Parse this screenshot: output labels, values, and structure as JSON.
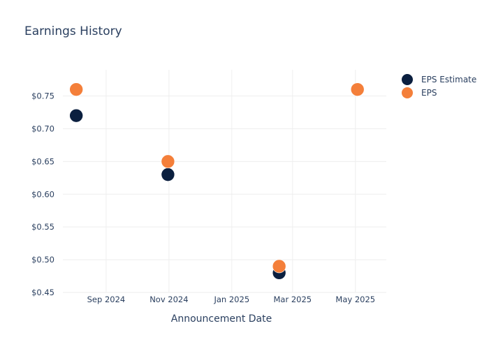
{
  "chart_data": {
    "type": "scatter",
    "title": "Earnings History",
    "xlabel": "Announcement Date",
    "ylabel": "",
    "x_tick_labels": [
      "Sep 2024",
      "Nov 2024",
      "Jan 2025",
      "Mar 2025",
      "May 2025"
    ],
    "y_tick_labels": [
      "$0.45",
      "$0.50",
      "$0.55",
      "$0.60",
      "$0.65",
      "$0.70",
      "$0.75"
    ],
    "x_ticks": [
      "2024-09-01",
      "2024-11-01",
      "2025-01-01",
      "2025-03-01",
      "2025-05-01"
    ],
    "y_ticks": [
      0.45,
      0.5,
      0.55,
      0.6,
      0.65,
      0.7,
      0.75
    ],
    "xlim": [
      "2024-07-21",
      "2025-05-31"
    ],
    "ylim": [
      0.45,
      0.79
    ],
    "grid": true,
    "legend_position": "top-right",
    "x": [
      "2024-08-03",
      "2024-10-31",
      "2025-02-16",
      "2025-05-03"
    ],
    "series": [
      {
        "name": "EPS Estimate",
        "color": "#0b1f3f",
        "values": [
          0.72,
          0.63,
          0.48,
          0.76
        ]
      },
      {
        "name": "EPS",
        "color": "#f47f3a",
        "values": [
          0.76,
          0.65,
          0.49,
          0.76
        ]
      }
    ]
  }
}
